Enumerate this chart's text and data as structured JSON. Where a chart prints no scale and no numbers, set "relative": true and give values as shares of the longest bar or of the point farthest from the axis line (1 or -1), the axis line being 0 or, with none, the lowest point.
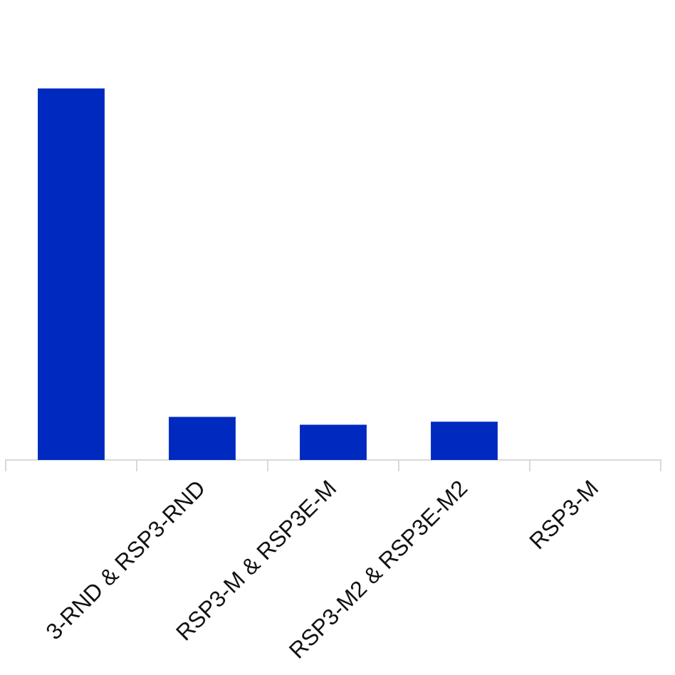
{
  "chart_data": {
    "type": "bar",
    "relative": true,
    "categories": [
      null,
      "3-RND & RSP3-RND",
      "RSP3-M & RSP3E-M",
      "RSP3-M2 & RSP3E-M2",
      "RSP3-M"
    ],
    "values": [
      1,
      0.116,
      0.095,
      0.103,
      null
    ],
    "color": "#0029c0",
    "legend": false,
    "tick_labels": "x"
  }
}
